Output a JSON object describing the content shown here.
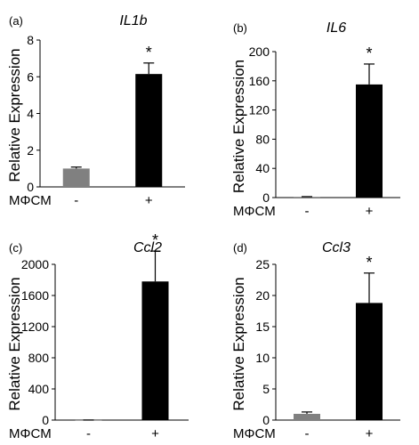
{
  "chart_data": [
    {
      "type": "bar",
      "panel_label": "(a)",
      "title": "IL1b",
      "ylabel": "Relative Expression",
      "xlabel": "MΦCM",
      "categories": [
        "-",
        "+"
      ],
      "values": [
        1.0,
        6.15
      ],
      "errors": [
        0.08,
        0.6
      ],
      "bar_colors": [
        "#808080",
        "#000000"
      ],
      "significance": [
        "",
        "*"
      ],
      "ylim": [
        0,
        8
      ],
      "yticks": [
        0,
        2,
        4,
        6,
        8
      ]
    },
    {
      "type": "bar",
      "panel_label": "(b)",
      "title": "IL6",
      "ylabel": "Relative Expression",
      "xlabel": "MΦCM",
      "categories": [
        "-",
        "+"
      ],
      "values": [
        1.0,
        155
      ],
      "errors": [
        0.3,
        28
      ],
      "bar_colors": [
        "#808080",
        "#000000"
      ],
      "significance": [
        "",
        "*"
      ],
      "ylim": [
        0,
        200
      ],
      "yticks": [
        0,
        40,
        80,
        120,
        160,
        200
      ]
    },
    {
      "type": "bar",
      "panel_label": "(c)",
      "title": "Ccl2",
      "ylabel": "Relative Expression",
      "xlabel": "MΦCM",
      "categories": [
        "-",
        "+"
      ],
      "values": [
        1.0,
        1780
      ],
      "errors": [
        0.5,
        390
      ],
      "bar_colors": [
        "#808080",
        "#000000"
      ],
      "significance": [
        "",
        "*"
      ],
      "ylim": [
        0,
        2000
      ],
      "yticks": [
        0,
        400,
        800,
        1200,
        1600,
        2000
      ]
    },
    {
      "type": "bar",
      "panel_label": "(d)",
      "title": "Ccl3",
      "ylabel": "Relative Expression",
      "xlabel": "MΦCM",
      "categories": [
        "-",
        "+"
      ],
      "values": [
        1.0,
        18.8
      ],
      "errors": [
        0.3,
        4.8
      ],
      "bar_colors": [
        "#808080",
        "#000000"
      ],
      "significance": [
        "",
        "*"
      ],
      "ylim": [
        0,
        25
      ],
      "yticks": [
        0,
        5,
        10,
        15,
        20,
        25
      ]
    }
  ]
}
